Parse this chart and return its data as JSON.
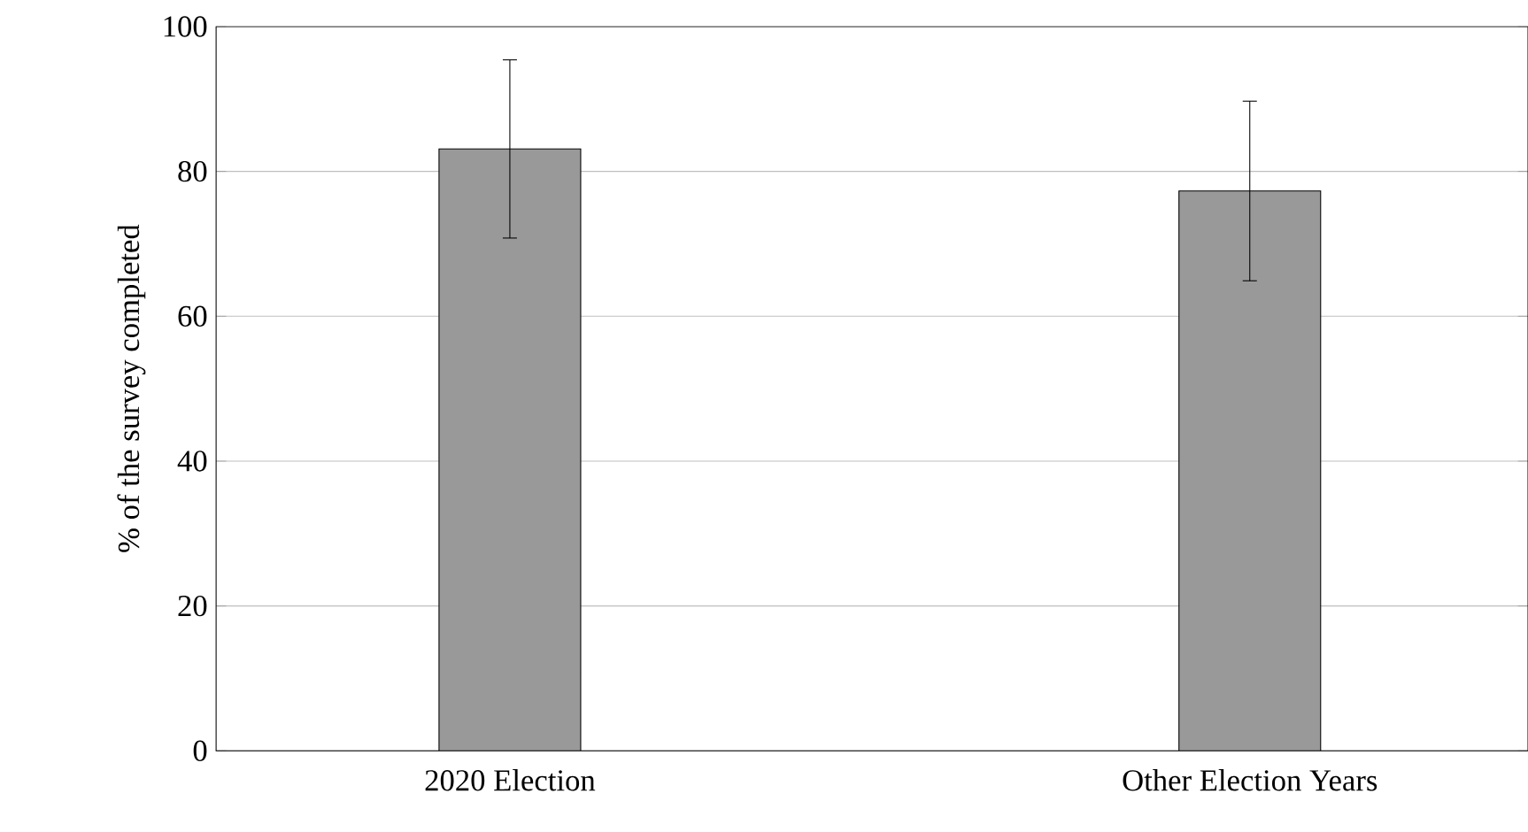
{
  "chart_data": {
    "type": "bar",
    "categories": [
      "2020 Election",
      "Other Election Years"
    ],
    "values": [
      83.1,
      77.3
    ],
    "errors": [
      12.3,
      12.4
    ],
    "color": "#999999",
    "ylabel": "% of the survey completed",
    "ylim": [
      0,
      100
    ],
    "yticks": [
      0,
      20,
      40,
      60,
      80,
      100
    ],
    "grid": "y"
  }
}
